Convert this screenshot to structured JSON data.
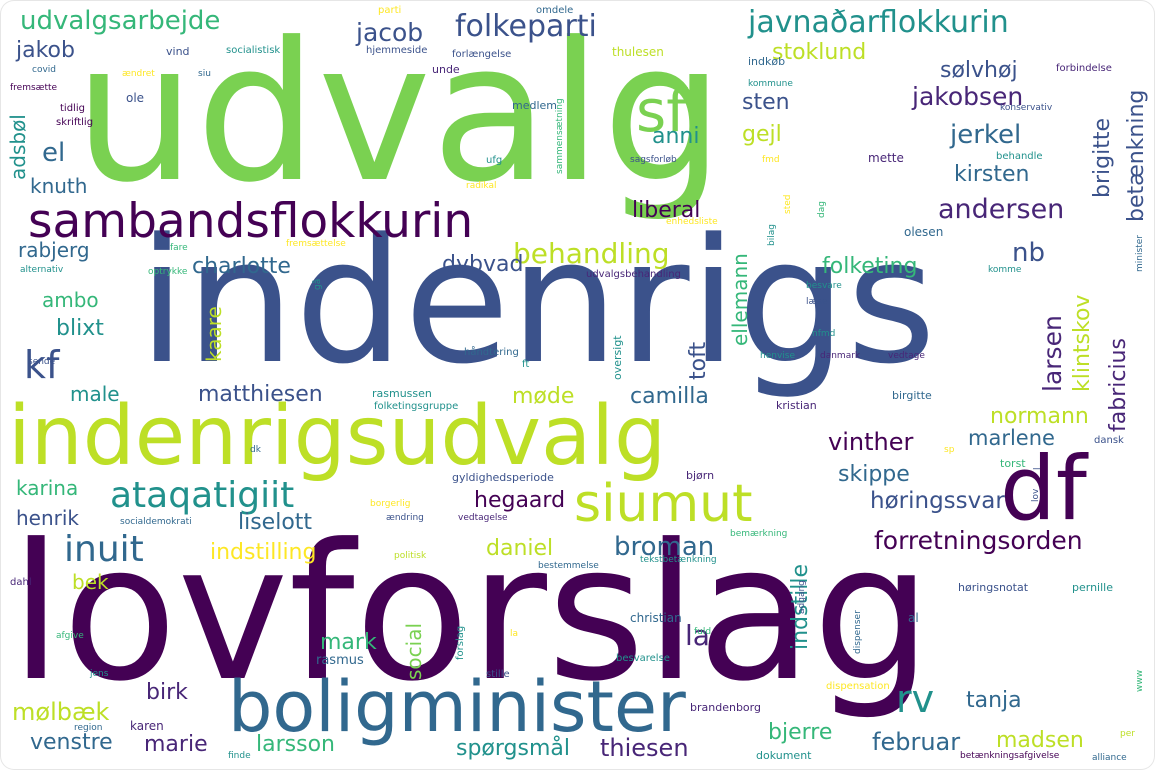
{
  "palette": {
    "dark_purple": "#440154",
    "purple": "#482677",
    "indigo": "#3b528b",
    "blue": "#31688e",
    "teal": "#21918c",
    "green": "#35b779",
    "lime": "#7ad151",
    "yellow_green": "#bddf26",
    "yellow": "#fde725",
    "background": "#ffffff"
  },
  "words": {
    "udvalg": "udvalg",
    "indenrigs": "indenrigs",
    "lovforslag": "lovforslag",
    "indenrigsudvalg": "indenrigsudvalg",
    "boligminister": "boligminister",
    "sambandsflokkurin": "sambandsflokkurin",
    "df": "df",
    "sf": "sf",
    "siumut": "siumut",
    "ataqatigiit": "ataqatigiit",
    "inuit": "inuit",
    "javnadarflokkurin": "javnaðarflokkurin",
    "folkeparti": "folkeparti",
    "udvalgsarbejde": "udvalgsarbejde",
    "behandling": "behandling",
    "andersen": "andersen",
    "jakobsen": "jakobsen",
    "jerkel": "jerkel",
    "forretningsorden": "forretningsorden",
    "broman": "broman",
    "horingssvar": "høringssvar",
    "rv": "rv",
    "kf": "kf",
    "la": "la",
    "jacob": "jacob",
    "jakob": "jakob",
    "stoklund": "stoklund",
    "solvhoj": "sølvhøj",
    "sten": "sten",
    "anni": "anni",
    "gejl": "gejl",
    "el": "el",
    "knuth": "knuth",
    "kirsten": "kirsten",
    "liberal": "liberal",
    "charlotte": "charlotte",
    "dybvad": "dybvad",
    "folketing": "folketing",
    "nb": "nb",
    "rabjerg": "rabjerg",
    "ambo": "ambo",
    "blixt": "blixt",
    "male": "male",
    "matthiesen": "matthiesen",
    "mode": "møde",
    "camilla": "camilla",
    "normann": "normann",
    "vinther": "vinther",
    "marlene": "marlene",
    "skippe": "skippe",
    "hegaard": "hegaard",
    "liselott": "liselott",
    "karina": "karina",
    "henrik": "henrik",
    "indstilling": "indstilling",
    "daniel": "daniel",
    "bek": "bek",
    "mark": "mark",
    "birk": "birk",
    "molbaek": "mølbæk",
    "venstre": "venstre",
    "marie": "marie",
    "larsson": "larsson",
    "sporgsmal": "spørgsmål",
    "thiesen": "thiesen",
    "februar": "februar",
    "madsen": "madsen",
    "tanja": "tanja",
    "bjerre": "bjerre",
    "rasmus": "rasmus",
    "karen": "karen",
    "mette": "mette",
    "olesen": "olesen",
    "kristian": "kristian",
    "birgitte_small": "birgitte",
    "bjorn": "bjørn",
    "torst": "torst",
    "dansk": "dansk",
    "pernille": "pernille",
    "christian": "christian",
    "brandenborg": "brandenborg",
    "dokument": "dokument",
    "dispensation": "dispensation",
    "al": "al",
    "medlem": "medlem",
    "unde": "unde",
    "ole": "ole",
    "vind": "vind",
    "socialistisk": "socialistisk",
    "hjemmeside": "hjemmeside",
    "forlaengelse": "forlængelse",
    "thulesen": "thulesen",
    "parti": "parti",
    "omdele": "omdele",
    "indkob": "indkøb",
    "kommune": "kommune",
    "konservativ": "konservativ",
    "forbindelse": "forbindelse",
    "behandle": "behandle",
    "covid": "covid",
    "aendret": "ændret",
    "siu": "siu",
    "fremsaette": "fremsætte",
    "tidlig": "tidlig",
    "skriftlig": "skriftlig",
    "ufg": "ufg",
    "radikal": "radikal",
    "sagsforlob": "sagsforløb",
    "fmd": "fmd",
    "enhedsliste": "enhedsliste",
    "fremsaettelse": "fremsættelse",
    "alternativ": "alternativ",
    "fare": "fare",
    "optrykke": "optrykke",
    "udvalgsbehandling": "udvalgsbehandling",
    "besvare": "besvare",
    "laese": "læse",
    "komme": "komme",
    "nfmd": "nfmd",
    "henvise": "henvise",
    "danmark": "danmark",
    "vedtage": "vedtage",
    "sende": "sende",
    "handtering": "håndtering",
    "ft": "ft",
    "rasmussen": "rasmussen",
    "folketingsgruppe": "folketingsgruppe",
    "dk": "dk",
    "sp": "sp",
    "gyldighedsperiode": "gyldighedsperiode",
    "borgerlig": "borgerlig",
    "socialdemokrati": "socialdemokrati",
    "aendring": "ændring",
    "vedtagelse": "vedtagelse",
    "bemaerkning": "bemærkning",
    "politisk": "politisk",
    "tekstbetaenkning": "tekstbetænkning",
    "horingsnotat": "høringsnotat",
    "bestemmelse": "bestemmelse",
    "dahl": "dahl",
    "afgive": "afgive",
    "fuld": "fuld",
    "besvarelse": "besvarelse",
    "stille": "stille",
    "jens": "jens",
    "region": "region",
    "finde": "finde",
    "betaenkningsafgivelse": "betænkningsafgivelse",
    "alliance": "alliance",
    "per": "per",
    "www": "www",
    "brigitte": "brigitte",
    "betaenkning": "betænkning",
    "adsbol": "adsbøl",
    "kaare": "kaare",
    "toft": "toft",
    "ellemann": "ellemann",
    "larsen": "larsen",
    "klintskov": "klintskov",
    "fabricius": "fabricius",
    "indstille": "indstille",
    "social": "social",
    "oversigt": "oversigt",
    "sammensaetning": "sammensætning",
    "dag": "dag",
    "sted": "sted",
    "bilag": "bilag",
    "minister": "minister",
    "forslag": "forslag",
    "dispenser": "dispenser",
    "adgang": "adgang",
    "lov": "lov",
    "l": "l",
    "gaa": "gå",
    "la_small": "la"
  }
}
